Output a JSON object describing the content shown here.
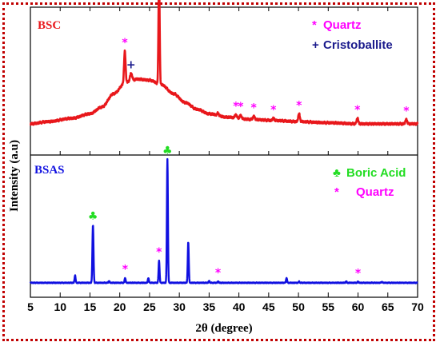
{
  "chart_data": {
    "type": "line",
    "xlabel": "2θ (degree)",
    "ylabel": "Intensity (a.u)",
    "xlim": [
      5,
      70
    ],
    "x_ticks": [
      "5",
      "10",
      "15",
      "20",
      "25",
      "30",
      "35",
      "40",
      "45",
      "50",
      "55",
      "60",
      "65",
      "70"
    ],
    "panels": [
      {
        "title": "BSC",
        "color": "#e8171b",
        "legend": [
          {
            "symbol": "*",
            "label": "Quartz",
            "color": "#ff00ff"
          },
          {
            "symbol": "+",
            "label": "Cristoballite",
            "color": "#1a1a8c"
          }
        ],
        "baseline": 0.05,
        "background": [
          [
            5,
            0.05
          ],
          [
            8,
            0.07
          ],
          [
            12,
            0.1
          ],
          [
            15,
            0.14
          ],
          [
            17,
            0.2
          ],
          [
            19,
            0.32
          ],
          [
            21,
            0.42
          ],
          [
            23,
            0.45
          ],
          [
            25,
            0.44
          ],
          [
            27,
            0.4
          ],
          [
            29,
            0.32
          ],
          [
            31,
            0.24
          ],
          [
            33,
            0.18
          ],
          [
            35,
            0.14
          ],
          [
            38,
            0.11
          ],
          [
            42,
            0.09
          ],
          [
            46,
            0.08
          ],
          [
            50,
            0.07
          ],
          [
            55,
            0.06
          ],
          [
            60,
            0.05
          ],
          [
            65,
            0.05
          ],
          [
            70,
            0.05
          ]
        ],
        "peaks": [
          {
            "x": 20.85,
            "h": 0.28,
            "w": 0.18,
            "label": "*",
            "lc": "#ff00ff"
          },
          {
            "x": 21.9,
            "h": 0.07,
            "w": 0.25,
            "label": "+",
            "lc": "#1a1a8c"
          },
          {
            "x": 26.6,
            "h": 1.0,
            "w": 0.14,
            "label": "*",
            "lc": "#ff00ff"
          },
          {
            "x": 36.5,
            "h": 0.02,
            "w": 0.2,
            "label": "",
            "lc": ""
          },
          {
            "x": 39.5,
            "h": 0.03,
            "w": 0.2,
            "label": "*",
            "lc": "#ff00ff"
          },
          {
            "x": 40.3,
            "h": 0.03,
            "w": 0.2,
            "label": "*",
            "lc": "#ff00ff"
          },
          {
            "x": 42.5,
            "h": 0.03,
            "w": 0.2,
            "label": "*",
            "lc": "#ff00ff"
          },
          {
            "x": 45.8,
            "h": 0.02,
            "w": 0.2,
            "label": "*",
            "lc": "#ff00ff"
          },
          {
            "x": 50.1,
            "h": 0.07,
            "w": 0.2,
            "label": "*",
            "lc": "#ff00ff"
          },
          {
            "x": 59.9,
            "h": 0.05,
            "w": 0.2,
            "label": "*",
            "lc": "#ff00ff"
          },
          {
            "x": 68.1,
            "h": 0.04,
            "w": 0.2,
            "label": "*",
            "lc": "#ff00ff"
          }
        ]
      },
      {
        "title": "BSAS",
        "color": "#1010e0",
        "legend": [
          {
            "symbol": "♣",
            "label": "Boric Acid",
            "color": "#22dd22"
          },
          {
            "symbol": "*",
            "label": "Quartz",
            "color": "#ff00ff"
          }
        ],
        "baseline": 0.02,
        "background": [
          [
            5,
            0.02
          ],
          [
            70,
            0.02
          ]
        ],
        "peaks": [
          {
            "x": 12.5,
            "h": 0.06,
            "w": 0.12,
            "label": "",
            "lc": ""
          },
          {
            "x": 15.5,
            "h": 0.47,
            "w": 0.13,
            "label": "♣",
            "lc": "#22dd22"
          },
          {
            "x": 18.2,
            "h": 0.015,
            "w": 0.12,
            "label": "",
            "lc": ""
          },
          {
            "x": 20.9,
            "h": 0.04,
            "w": 0.12,
            "label": "*",
            "lc": "#ff00ff"
          },
          {
            "x": 24.8,
            "h": 0.04,
            "w": 0.12,
            "label": "",
            "lc": ""
          },
          {
            "x": 26.6,
            "h": 0.18,
            "w": 0.12,
            "label": "*",
            "lc": "#ff00ff"
          },
          {
            "x": 28.0,
            "h": 1.0,
            "w": 0.12,
            "label": "♣",
            "lc": "#22dd22"
          },
          {
            "x": 31.5,
            "h": 0.33,
            "w": 0.12,
            "label": "",
            "lc": ""
          },
          {
            "x": 35.0,
            "h": 0.015,
            "w": 0.12,
            "label": "",
            "lc": ""
          },
          {
            "x": 36.5,
            "h": 0.012,
            "w": 0.12,
            "label": "*",
            "lc": "#ff00ff"
          },
          {
            "x": 48.0,
            "h": 0.04,
            "w": 0.12,
            "label": "",
            "lc": ""
          },
          {
            "x": 50.1,
            "h": 0.01,
            "w": 0.12,
            "label": "",
            "lc": ""
          },
          {
            "x": 58.0,
            "h": 0.012,
            "w": 0.12,
            "label": "",
            "lc": ""
          },
          {
            "x": 60.0,
            "h": 0.01,
            "w": 0.12,
            "label": "*",
            "lc": "#ff00ff"
          },
          {
            "x": 64.0,
            "h": 0.008,
            "w": 0.12,
            "label": "",
            "lc": ""
          }
        ]
      }
    ]
  }
}
